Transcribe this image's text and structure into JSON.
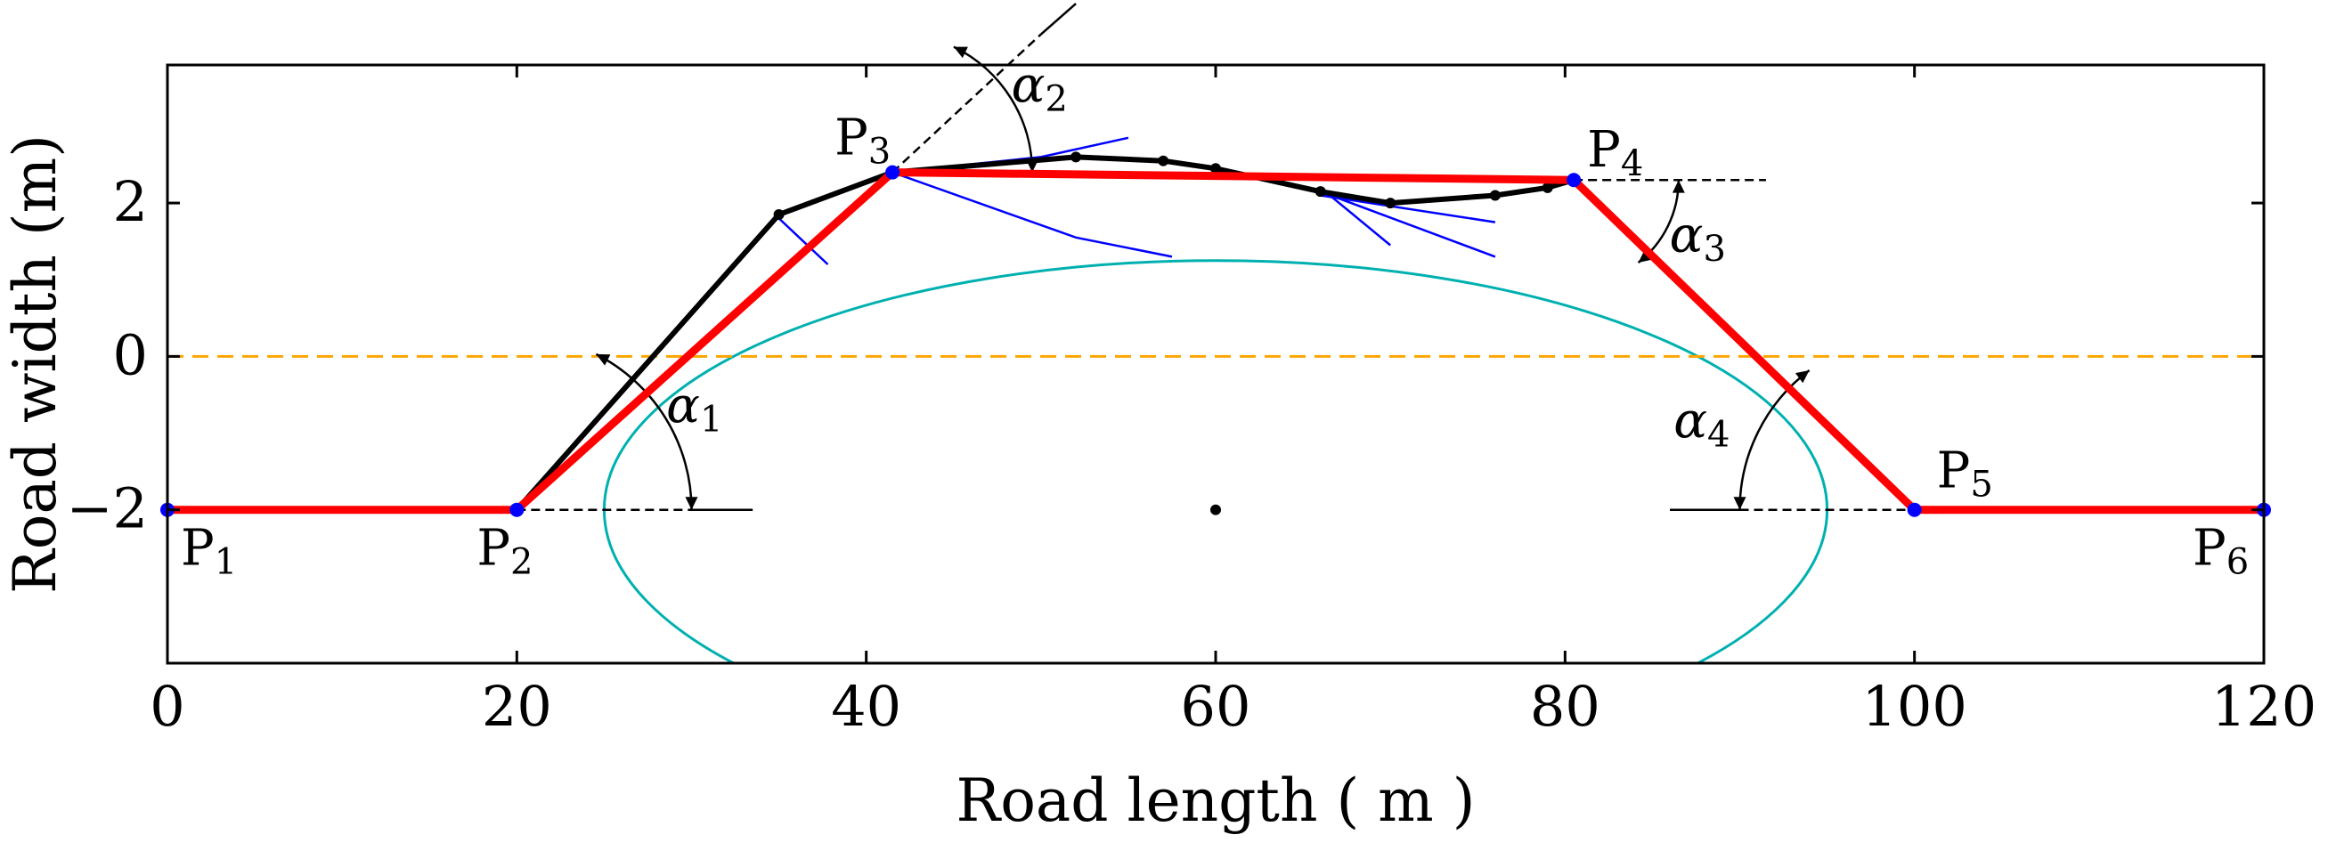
{
  "chart_data": {
    "type": "line",
    "title": "",
    "xlabel": "Road length ( m )",
    "ylabel": "Road width (m)",
    "xlim": [
      0,
      120
    ],
    "ylim": [
      -4,
      3.8
    ],
    "xticks": [
      0,
      20,
      40,
      60,
      80,
      100,
      120
    ],
    "yticks": [
      -2,
      0,
      2
    ],
    "xtick_labels": [
      "0",
      "20",
      "40",
      "60",
      "80",
      "100",
      "120"
    ],
    "ytick_labels": [
      "−2",
      "0",
      "2"
    ],
    "grid": false,
    "colors": {
      "planned_path": "#ff0000",
      "waypoints": "#0000ff",
      "vehicle_path": "#000000",
      "tangents": "#0000ff",
      "centerline": "#ffa500",
      "obstacle_ellipse": "#00b0b0"
    },
    "reference_line": {
      "y": 0,
      "style": "dashed",
      "color": "#ffa500"
    },
    "planned_path": {
      "name": "planned path",
      "points": [
        {
          "label": "P",
          "sub": "1",
          "x": 0,
          "y": -2
        },
        {
          "label": "P",
          "sub": "2",
          "x": 20,
          "y": -2
        },
        {
          "label": "P",
          "sub": "3",
          "x": 41.5,
          "y": 2.4
        },
        {
          "label": "P",
          "sub": "4",
          "x": 80.5,
          "y": 2.3
        },
        {
          "label": "P",
          "sub": "5",
          "x": 100,
          "y": -2
        },
        {
          "label": "P",
          "sub": "6",
          "x": 120,
          "y": -2
        }
      ]
    },
    "vehicle_path": {
      "name": "vehicle trajectory",
      "x": [
        20,
        35,
        41.5,
        52,
        57,
        60,
        66,
        70,
        76,
        79,
        80.5
      ],
      "y": [
        -2,
        1.85,
        2.4,
        2.6,
        2.55,
        2.45,
        2.15,
        2.0,
        2.1,
        2.2,
        2.3
      ]
    },
    "tangent_segments": [
      {
        "x": [
          35,
          37.8
        ],
        "y": [
          1.8,
          1.2
        ]
      },
      {
        "x": [
          41.5,
          52,
          57.5
        ],
        "y": [
          2.4,
          1.55,
          1.3
        ]
      },
      {
        "x": [
          41.5,
          50,
          55
        ],
        "y": [
          2.4,
          2.6,
          2.85
        ]
      },
      {
        "x": [
          66,
          70
        ],
        "y": [
          2.2,
          1.45
        ]
      },
      {
        "x": [
          66,
          76
        ],
        "y": [
          2.15,
          1.3
        ]
      },
      {
        "x": [
          66,
          76
        ],
        "y": [
          2.1,
          1.75
        ]
      }
    ],
    "obstacle": {
      "center": {
        "x": 60,
        "y": -2
      },
      "semi_axis_x": 35,
      "semi_axis_y": 3.25
    },
    "helper_lines": [
      {
        "x": [
          41.5,
          50
        ],
        "y": [
          2.4,
          4.2
        ],
        "style": "dashed"
      },
      {
        "x": [
          50,
          52
        ],
        "y": [
          4.2,
          4.6
        ],
        "style": "solid"
      },
      {
        "x": [
          20,
          30
        ],
        "y": [
          -2,
          -2
        ],
        "style": "dashed"
      },
      {
        "x": [
          30,
          33.5
        ],
        "y": [
          -2,
          -2
        ],
        "style": "solid"
      },
      {
        "x": [
          80.5,
          91.5
        ],
        "y": [
          2.3,
          2.3
        ],
        "style": "dashed"
      },
      {
        "x": [
          86,
          90
        ],
        "y": [
          -2,
          -2
        ],
        "style": "solid"
      },
      {
        "x": [
          90,
          100
        ],
        "y": [
          -2,
          -2
        ],
        "style": "dashed"
      }
    ],
    "angle_arcs": [
      {
        "label": "α",
        "sub": "1",
        "center": {
          "x": 20,
          "y": -2
        },
        "radius_x": 10,
        "direction_deg": 63
      },
      {
        "label": "α",
        "sub": "2",
        "center": {
          "x": 41.5,
          "y": 2.4
        },
        "radius_x": 8,
        "direction_deg": 64
      },
      {
        "label": "α",
        "sub": "3",
        "center": {
          "x": 80.5,
          "y": 2.3
        },
        "radius_x": 6,
        "direction_deg": -52
      },
      {
        "label": "α",
        "sub": "4",
        "center": {
          "x": 100,
          "y": -2
        },
        "radius_x": 10,
        "direction_deg": 127
      }
    ]
  }
}
